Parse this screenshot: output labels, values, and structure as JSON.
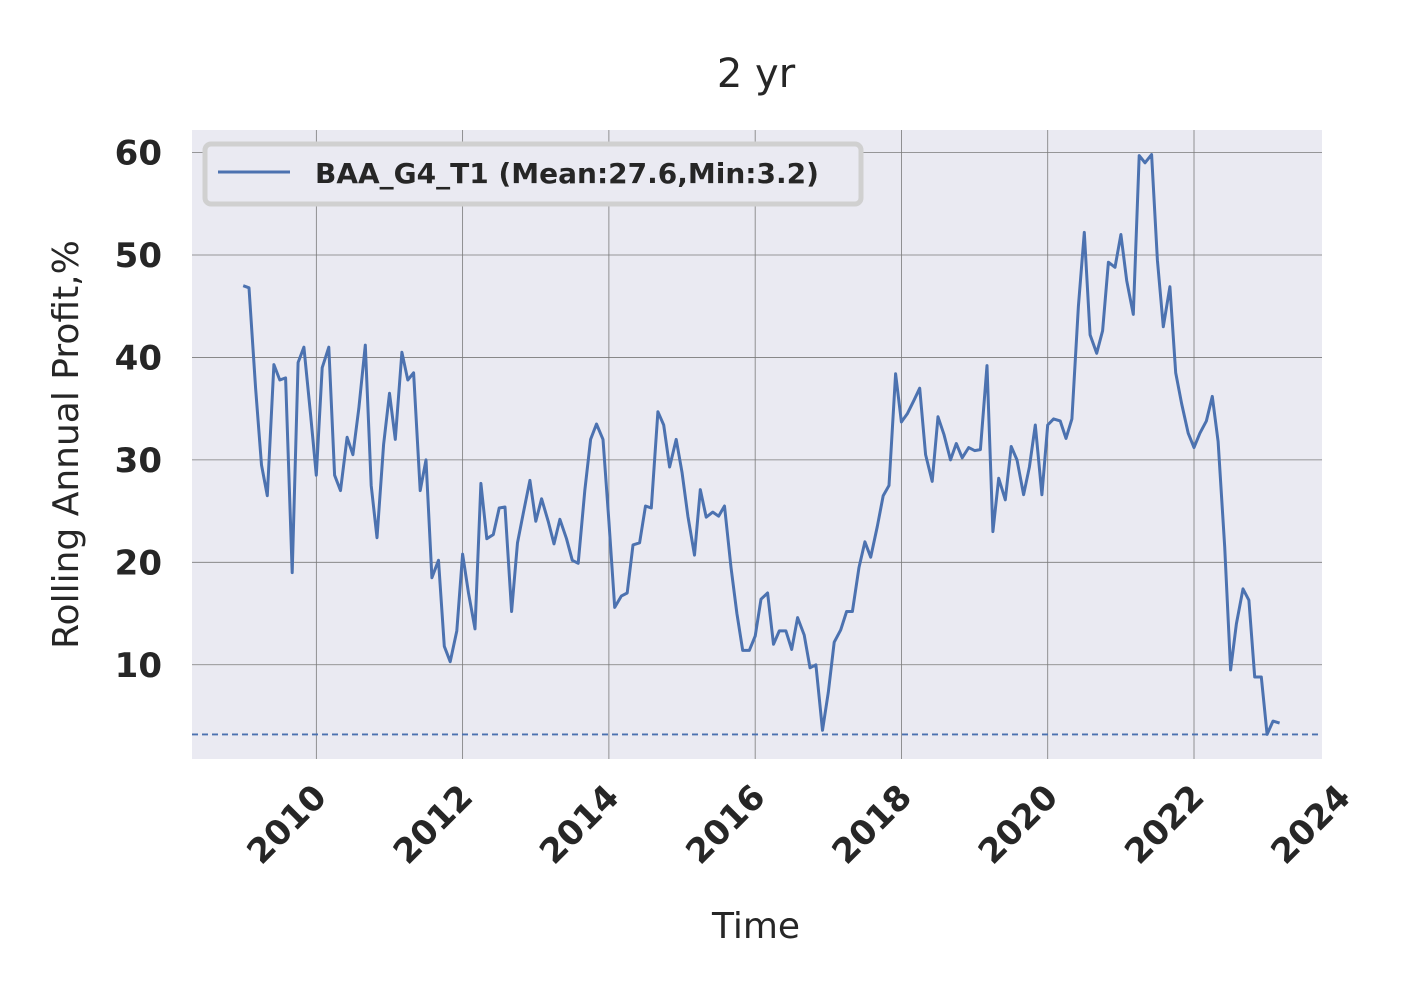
{
  "chart_data": {
    "type": "line",
    "title": "2 yr",
    "xlabel": "Time",
    "ylabel": "Rolling Annual Profit,%",
    "xlim": [
      2008.3,
      2023.75
    ],
    "ylim": [
      0.8,
      62.2
    ],
    "x_ticks": [
      2010,
      2012,
      2014,
      2016,
      2018,
      2020,
      2022,
      2024
    ],
    "y_ticks": [
      10,
      20,
      30,
      40,
      50,
      60
    ],
    "grid": true,
    "legend_position": "top-left",
    "reference_line": {
      "y": 3.2,
      "style": "dashed",
      "color": "#4c72b0"
    },
    "series": [
      {
        "name": "BAA_G4_T1 (Mean:27.6,Min:3.2)",
        "color": "#4c72b0",
        "points": [
          [
            2009.0,
            47.0
          ],
          [
            2009.08,
            46.8
          ],
          [
            2009.17,
            37.0
          ],
          [
            2009.25,
            29.5
          ],
          [
            2009.33,
            26.5
          ],
          [
            2009.42,
            39.3
          ],
          [
            2009.5,
            37.8
          ],
          [
            2009.58,
            38.0
          ],
          [
            2009.67,
            19.0
          ],
          [
            2009.75,
            39.5
          ],
          [
            2009.83,
            41.0
          ],
          [
            2009.92,
            34.5
          ],
          [
            2010.0,
            28.5
          ],
          [
            2010.08,
            39.0
          ],
          [
            2010.17,
            41.0
          ],
          [
            2010.25,
            28.5
          ],
          [
            2010.33,
            27.0
          ],
          [
            2010.42,
            32.2
          ],
          [
            2010.5,
            30.5
          ],
          [
            2010.58,
            35.0
          ],
          [
            2010.67,
            41.2
          ],
          [
            2010.75,
            27.5
          ],
          [
            2010.83,
            22.4
          ],
          [
            2010.92,
            31.5
          ],
          [
            2011.0,
            36.5
          ],
          [
            2011.08,
            32.0
          ],
          [
            2011.17,
            40.5
          ],
          [
            2011.25,
            37.8
          ],
          [
            2011.33,
            38.5
          ],
          [
            2011.42,
            27.0
          ],
          [
            2011.5,
            30.0
          ],
          [
            2011.58,
            18.5
          ],
          [
            2011.67,
            20.2
          ],
          [
            2011.75,
            11.8
          ],
          [
            2011.83,
            10.3
          ],
          [
            2011.92,
            13.3
          ],
          [
            2012.0,
            20.8
          ],
          [
            2012.08,
            17.0
          ],
          [
            2012.17,
            13.5
          ],
          [
            2012.25,
            27.7
          ],
          [
            2012.33,
            22.3
          ],
          [
            2012.42,
            22.7
          ],
          [
            2012.5,
            25.3
          ],
          [
            2012.58,
            25.4
          ],
          [
            2012.67,
            15.2
          ],
          [
            2012.75,
            21.9
          ],
          [
            2012.83,
            24.8
          ],
          [
            2012.92,
            28.0
          ],
          [
            2013.0,
            24.0
          ],
          [
            2013.08,
            26.2
          ],
          [
            2013.17,
            24.0
          ],
          [
            2013.25,
            21.8
          ],
          [
            2013.33,
            24.2
          ],
          [
            2013.42,
            22.3
          ],
          [
            2013.5,
            20.2
          ],
          [
            2013.58,
            19.9
          ],
          [
            2013.67,
            27.0
          ],
          [
            2013.75,
            32.0
          ],
          [
            2013.83,
            33.5
          ],
          [
            2013.92,
            32.0
          ],
          [
            2014.0,
            24.0
          ],
          [
            2014.08,
            15.6
          ],
          [
            2014.17,
            16.7
          ],
          [
            2014.25,
            17.0
          ],
          [
            2014.33,
            21.7
          ],
          [
            2014.42,
            21.9
          ],
          [
            2014.5,
            25.5
          ],
          [
            2014.58,
            25.3
          ],
          [
            2014.67,
            34.7
          ],
          [
            2014.75,
            33.4
          ],
          [
            2014.83,
            29.3
          ],
          [
            2014.92,
            32.0
          ],
          [
            2015.0,
            28.8
          ],
          [
            2015.08,
            24.5
          ],
          [
            2015.17,
            20.7
          ],
          [
            2015.25,
            27.1
          ],
          [
            2015.33,
            24.4
          ],
          [
            2015.42,
            24.9
          ],
          [
            2015.5,
            24.5
          ],
          [
            2015.58,
            25.5
          ],
          [
            2015.67,
            19.5
          ],
          [
            2015.75,
            15.0
          ],
          [
            2015.83,
            11.4
          ],
          [
            2015.92,
            11.4
          ],
          [
            2016.0,
            12.8
          ],
          [
            2016.08,
            16.4
          ],
          [
            2016.17,
            17.0
          ],
          [
            2016.25,
            12.0
          ],
          [
            2016.33,
            13.3
          ],
          [
            2016.42,
            13.3
          ],
          [
            2016.5,
            11.5
          ],
          [
            2016.58,
            14.6
          ],
          [
            2016.67,
            12.9
          ],
          [
            2016.75,
            9.7
          ],
          [
            2016.83,
            10.0
          ],
          [
            2016.92,
            3.6
          ],
          [
            2017.0,
            7.3
          ],
          [
            2017.08,
            12.2
          ],
          [
            2017.17,
            13.4
          ],
          [
            2017.25,
            15.2
          ],
          [
            2017.33,
            15.2
          ],
          [
            2017.42,
            19.5
          ],
          [
            2017.5,
            22.0
          ],
          [
            2017.58,
            20.5
          ],
          [
            2017.67,
            23.5
          ],
          [
            2017.75,
            26.5
          ],
          [
            2017.83,
            27.5
          ],
          [
            2017.92,
            38.4
          ],
          [
            2018.0,
            33.7
          ],
          [
            2018.08,
            34.5
          ],
          [
            2018.17,
            35.8
          ],
          [
            2018.25,
            37.0
          ],
          [
            2018.33,
            30.5
          ],
          [
            2018.42,
            27.9
          ],
          [
            2018.5,
            34.2
          ],
          [
            2018.58,
            32.5
          ],
          [
            2018.67,
            30.0
          ],
          [
            2018.75,
            31.6
          ],
          [
            2018.83,
            30.2
          ],
          [
            2018.92,
            31.2
          ],
          [
            2019.0,
            30.9
          ],
          [
            2019.08,
            31.0
          ],
          [
            2019.17,
            39.2
          ],
          [
            2019.25,
            23.0
          ],
          [
            2019.33,
            28.2
          ],
          [
            2019.42,
            26.1
          ],
          [
            2019.5,
            31.3
          ],
          [
            2019.58,
            30.0
          ],
          [
            2019.67,
            26.6
          ],
          [
            2019.75,
            29.3
          ],
          [
            2019.83,
            33.4
          ],
          [
            2019.92,
            26.6
          ],
          [
            2020.0,
            33.4
          ],
          [
            2020.08,
            34.0
          ],
          [
            2020.17,
            33.8
          ],
          [
            2020.25,
            32.1
          ],
          [
            2020.33,
            34.0
          ],
          [
            2020.42,
            45.0
          ],
          [
            2020.5,
            52.2
          ],
          [
            2020.58,
            42.2
          ],
          [
            2020.67,
            40.4
          ],
          [
            2020.75,
            42.6
          ],
          [
            2020.83,
            49.3
          ],
          [
            2020.92,
            48.8
          ],
          [
            2021.0,
            52.0
          ],
          [
            2021.08,
            47.5
          ],
          [
            2021.17,
            44.2
          ],
          [
            2021.25,
            59.7
          ],
          [
            2021.33,
            59.0
          ],
          [
            2021.42,
            59.8
          ],
          [
            2021.5,
            49.5
          ],
          [
            2021.58,
            43.0
          ],
          [
            2021.67,
            46.9
          ],
          [
            2021.75,
            38.5
          ],
          [
            2021.83,
            35.5
          ],
          [
            2021.92,
            32.6
          ],
          [
            2022.0,
            31.2
          ],
          [
            2022.08,
            32.6
          ],
          [
            2022.17,
            33.8
          ],
          [
            2022.25,
            36.2
          ],
          [
            2022.33,
            31.8
          ],
          [
            2022.42,
            21.5
          ],
          [
            2022.5,
            9.5
          ],
          [
            2022.58,
            14.0
          ],
          [
            2022.67,
            17.4
          ],
          [
            2022.75,
            16.3
          ],
          [
            2022.83,
            8.8
          ],
          [
            2022.92,
            8.8
          ],
          [
            2023.0,
            3.2
          ],
          [
            2023.08,
            4.5
          ],
          [
            2023.17,
            4.3
          ]
        ]
      }
    ]
  }
}
